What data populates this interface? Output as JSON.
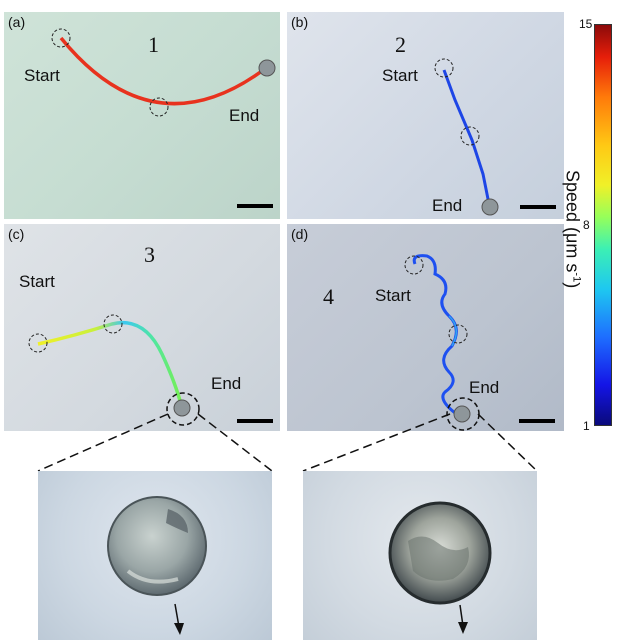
{
  "panels": {
    "a": {
      "label": "(a)",
      "number": "1",
      "start": "Start",
      "end": "End",
      "track_color": "#e8321e"
    },
    "b": {
      "label": "(b)",
      "number": "2",
      "start": "Start",
      "end": "End",
      "track_color": "#1e46e6"
    },
    "c": {
      "label": "(c)",
      "number": "3",
      "start": "Start",
      "end": "End"
    },
    "d": {
      "label": "(d)",
      "number": "4",
      "start": "Start",
      "end": "End",
      "track_color": "#1e50f0"
    }
  },
  "colorbar": {
    "title": "Speed (μm s",
    "title_sup": "-1",
    "title_close": ")",
    "ticks": {
      "max": "15",
      "mid": "8",
      "min": "1"
    }
  }
}
